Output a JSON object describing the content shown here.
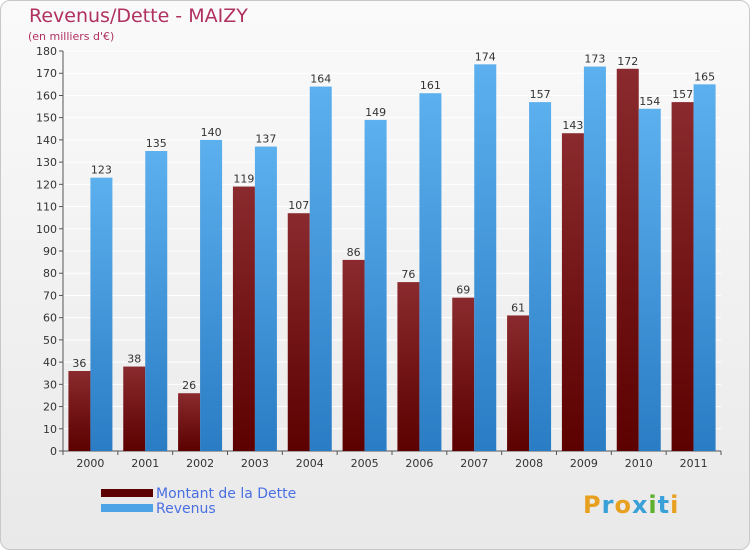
{
  "chart_data": {
    "type": "bar",
    "title": "Revenus/Dette - MAIZY",
    "subtitle": "(en milliers d'€)",
    "categories": [
      "2000",
      "2001",
      "2002",
      "2003",
      "2004",
      "2005",
      "2006",
      "2007",
      "2008",
      "2009",
      "2010",
      "2011"
    ],
    "series": [
      {
        "name": "Montant de la Dette",
        "values": [
          36,
          38,
          26,
          119,
          107,
          86,
          76,
          69,
          61,
          143,
          172,
          157
        ],
        "color": "#7a1518"
      },
      {
        "name": "Revenus",
        "values": [
          123,
          135,
          140,
          137,
          164,
          149,
          161,
          174,
          157,
          173,
          154,
          165
        ],
        "color": "#4da3e6"
      }
    ],
    "ylim": [
      0,
      180
    ],
    "ytick_step": 10,
    "grid": true,
    "legend_position": "bottom-left"
  },
  "legend": {
    "debt_label": "Montant de la Dette",
    "revenue_label": "Revenus"
  },
  "logo": {
    "text": "Proxiti",
    "letters": [
      "P",
      "r",
      "o",
      "x",
      "i",
      "t",
      "i"
    ],
    "colors": [
      "#e8a020",
      "#3aa0d8",
      "#e8a020",
      "#3aa0d8",
      "#60b030",
      "#3aa0d8",
      "#e8a020"
    ]
  }
}
